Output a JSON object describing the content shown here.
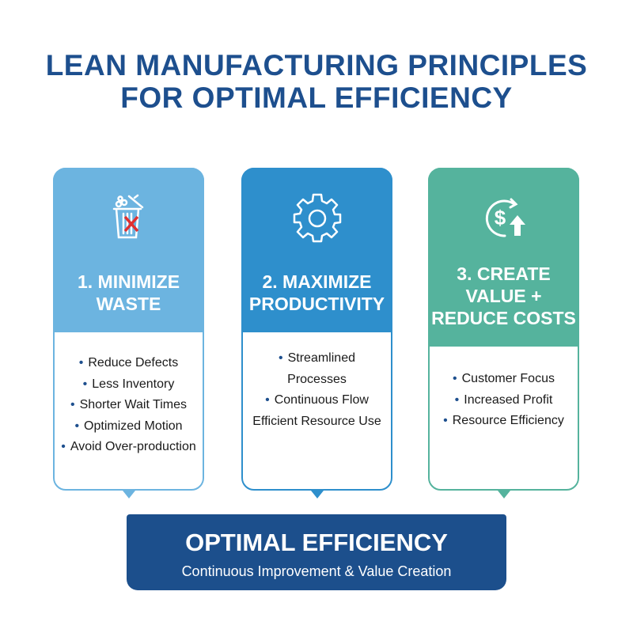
{
  "title": {
    "line1": "LEAN MANUFACTURING PRINCIPLES",
    "line2": "FOR OPTIMAL EFFICIENCY"
  },
  "colors": {
    "title": "#1d4f8e",
    "card1": "#6cb4e0",
    "card2": "#2e8fcc",
    "card3": "#55b39d",
    "bottom": "#1c4f8c",
    "cross": "#e03030"
  },
  "cards": [
    {
      "icon": "trash-with-cross-icon",
      "title_lines": [
        "1. MINIMIZE",
        "WASTE"
      ],
      "items": [
        "Reduce Defects",
        "Less Inventory",
        "Shorter Wait Times",
        "Optimized Motion",
        "Avoid Over-production"
      ]
    },
    {
      "icon": "gear-icon",
      "title_lines": [
        "2. MAXIMIZE",
        "PRODUCTIVITY"
      ],
      "items": [
        "Streamlined",
        "Processes",
        "Continuous Flow",
        "Efficient Resource Use"
      ]
    },
    {
      "icon": "dollar-cycle-arrow-up-icon",
      "title_lines": [
        "3. CREATE",
        "VALUE +",
        "REDUCE COSTS"
      ],
      "items": [
        "Customer Focus",
        "Increased Profit",
        "Resource Efficiency"
      ]
    }
  ],
  "bottom": {
    "title": "OPTIMAL EFFICIENCY",
    "subtitle": "Continuous Improvement & Value Creation"
  }
}
